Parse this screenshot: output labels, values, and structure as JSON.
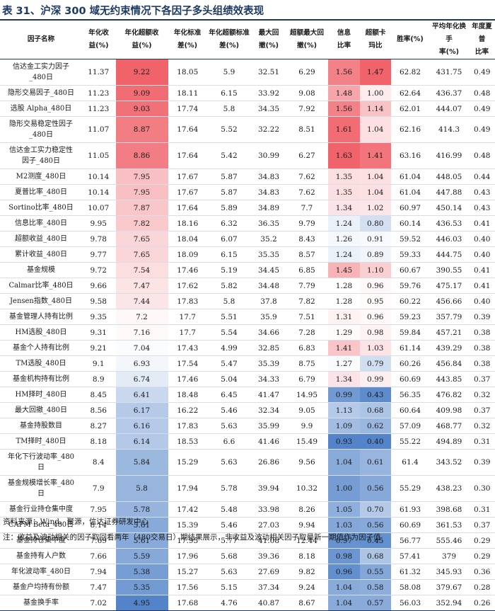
{
  "title": "表 31、沪深 300 域无约束情况下各因子多头组绩效表现",
  "colors": {
    "title": "#1e3a63",
    "high": "#ef5b63",
    "low": "#4a7ec6"
  },
  "headers": [
    [
      "因子名称"
    ],
    [
      "年化收",
      "益(%)"
    ],
    [
      "年化超额收",
      "益(%)"
    ],
    [
      "年化标准",
      "差(%)"
    ],
    [
      "年化超额标准",
      "差(%)"
    ],
    [
      "最大回",
      "撤(%)"
    ],
    [
      "超额最大回",
      "撤(%)"
    ],
    [
      "信息",
      "比率"
    ],
    [
      "超额卡",
      "玛比"
    ],
    [
      "胜率(%)"
    ],
    [
      "平均年化换手",
      "率(%)"
    ],
    [
      "年度夏普",
      "比率"
    ]
  ],
  "rows": [
    {
      "name": [
        "信达金工实力因子",
        "_480日"
      ],
      "v": [
        "11.37",
        "9.22",
        "18.05",
        "5.9",
        "32.51",
        "6.29",
        "1.56",
        "1.47",
        "62.82",
        "431.75",
        "0.49"
      ]
    },
    {
      "name": [
        "隐形交易因子_480日"
      ],
      "v": [
        "11.23",
        "9.09",
        "18.11",
        "6.15",
        "33.92",
        "9.08",
        "1.48",
        "1.00",
        "62.64",
        "436.37",
        "0.48"
      ]
    },
    {
      "name": [
        "选股 Alpha_480日"
      ],
      "v": [
        "11.23",
        "9.03",
        "17.74",
        "5.8",
        "34.35",
        "7.92",
        "1.56",
        "1.14",
        "62.01",
        "444.07",
        "0.49"
      ]
    },
    {
      "name": [
        "隐形交易稳定性因子",
        "_480日"
      ],
      "v": [
        "11.07",
        "8.87",
        "17.64",
        "5.52",
        "32.22",
        "8.51",
        "1.61",
        "1.04",
        "62.16",
        "414.3",
        "0.49"
      ]
    },
    {
      "name": [
        "信达金工实力稳定性",
        "因子_480日"
      ],
      "v": [
        "11.05",
        "8.86",
        "17.64",
        "5.42",
        "30.99",
        "6.27",
        "1.63",
        "1.41",
        "63.16",
        "416.99",
        "0.48"
      ]
    },
    {
      "name": [
        "M2测度_480日"
      ],
      "v": [
        "10.14",
        "7.95",
        "17.67",
        "5.87",
        "34.83",
        "7.62",
        "1.35",
        "1.04",
        "61.04",
        "448.05",
        "0.44"
      ]
    },
    {
      "name": [
        "夏普比率_480日"
      ],
      "v": [
        "10.14",
        "7.95",
        "17.67",
        "5.87",
        "34.83",
        "7.62",
        "1.35",
        "1.04",
        "61.04",
        "447.88",
        "0.43"
      ]
    },
    {
      "name": [
        "Sortino比率_480日"
      ],
      "v": [
        "10.07",
        "7.87",
        "17.64",
        "5.89",
        "34.89",
        "7.7",
        "1.34",
        "1.02",
        "60.97",
        "450.14",
        "0.43"
      ]
    },
    {
      "name": [
        "信息比率_480日"
      ],
      "v": [
        "9.95",
        "7.82",
        "18.16",
        "6.32",
        "36.35",
        "9.79",
        "1.24",
        "0.80",
        "60.14",
        "436.53",
        "0.41"
      ]
    },
    {
      "name": [
        "超额收益_480日"
      ],
      "v": [
        "9.78",
        "7.65",
        "18.04",
        "6.07",
        "35.2",
        "8.43",
        "1.26",
        "0.91",
        "59.52",
        "446.03",
        "0.40"
      ]
    },
    {
      "name": [
        "累计收益_480日"
      ],
      "v": [
        "9.77",
        "7.65",
        "18.09",
        "6.15",
        "35.35",
        "8.57",
        "1.24",
        "0.89",
        "59.33",
        "444.75",
        "0.40"
      ]
    },
    {
      "name": [
        "基金规模"
      ],
      "v": [
        "9.72",
        "7.54",
        "17.46",
        "5.19",
        "34.45",
        "6.85",
        "1.45",
        "1.10",
        "60.67",
        "390.55",
        "0.41"
      ]
    },
    {
      "name": [
        "Calmar比率_480日"
      ],
      "v": [
        "9.66",
        "7.47",
        "17.62",
        "5.82",
        "34.48",
        "7.79",
        "1.28",
        "0.96",
        "59.76",
        "475.17",
        "0.41"
      ]
    },
    {
      "name": [
        "Jensen指数_480日"
      ],
      "v": [
        "9.58",
        "7.44",
        "17.83",
        "5.8",
        "37.8",
        "7.82",
        "1.28",
        "0.95",
        "60.22",
        "456.66",
        "0.40"
      ]
    },
    {
      "name": [
        "基金管理人持有比例"
      ],
      "v": [
        "9.35",
        "7.2",
        "17.7",
        "5.51",
        "35.9",
        "7.51",
        "1.31",
        "0.96",
        "59.23",
        "357.79",
        "0.39"
      ]
    },
    {
      "name": [
        "HM选股_480日"
      ],
      "v": [
        "9.31",
        "7.16",
        "17.7",
        "5.54",
        "34.66",
        "7.28",
        "1.29",
        "0.98",
        "59.84",
        "457.21",
        "0.38"
      ]
    },
    {
      "name": [
        "基金个人持有比例"
      ],
      "v": [
        "9.21",
        "7.04",
        "17.43",
        "4.99",
        "32.85",
        "6.83",
        "1.41",
        "1.03",
        "61.14",
        "439.29",
        "0.38"
      ]
    },
    {
      "name": [
        "TM选股_480日"
      ],
      "v": [
        "9.1",
        "6.93",
        "17.54",
        "5.47",
        "35.39",
        "8.75",
        "1.27",
        "0.79",
        "60.26",
        "456.84",
        "0.38"
      ]
    },
    {
      "name": [
        "基金机构持有比例"
      ],
      "v": [
        "8.9",
        "6.74",
        "17.46",
        "5.04",
        "34.33",
        "6.79",
        "1.34",
        "0.99",
        "60.69",
        "443.85",
        "0.37"
      ]
    },
    {
      "name": [
        "HM择时_480日"
      ],
      "v": [
        "8.45",
        "6.41",
        "18.48",
        "6.45",
        "41.47",
        "14.95",
        "0.99",
        "0.43",
        "56.35",
        "476.82",
        "0.32"
      ]
    },
    {
      "name": [
        "最大回撤_480日"
      ],
      "v": [
        "8.56",
        "6.17",
        "16.22",
        "5.46",
        "32.34",
        "9.05",
        "1.13",
        "0.68",
        "60.64",
        "409.98",
        "0.37"
      ]
    },
    {
      "name": [
        "基金持股数目"
      ],
      "v": [
        "8.27",
        "6.16",
        "17.83",
        "5.63",
        "35.99",
        "9.9",
        "1.09",
        "0.62",
        "57.09",
        "468.77",
        "0.32"
      ]
    },
    {
      "name": [
        "TM择时_480日"
      ],
      "v": [
        "8.18",
        "6.14",
        "18.53",
        "6.6",
        "41.46",
        "15.49",
        "0.93",
        "0.40",
        "55.22",
        "494.89",
        "0.31"
      ]
    },
    {
      "name": [
        "年化下行波动率_480",
        "日"
      ],
      "v": [
        "8.4",
        "5.84",
        "15.29",
        "5.63",
        "26.86",
        "9.56",
        "1.04",
        "0.61",
        "61.4",
        "343.52",
        "0.39"
      ]
    },
    {
      "name": [
        "基金规模增长率_480",
        "日"
      ],
      "v": [
        "7.9",
        "5.8",
        "17.94",
        "5.78",
        "39.94",
        "10.32",
        "1.00",
        "0.56",
        "55.29",
        "438.23",
        "0.30"
      ]
    },
    {
      "name": [
        "基金行业持仓集中度"
      ],
      "v": [
        "7.95",
        "5.78",
        "17.42",
        "5.48",
        "33.98",
        "8.26",
        "1.05",
        "0.70",
        "61.93",
        "398.68",
        "0.31"
      ]
    },
    {
      "name": [
        "CAPM Beta_480日"
      ],
      "v": [
        "8.14",
        "5.61",
        "15.39",
        "5.46",
        "27.03",
        "9.94",
        "1.03",
        "0.56",
        "60.69",
        "361.53",
        "0.37"
      ]
    },
    {
      "name": [
        "基金持仓集中度"
      ],
      "v": [
        "7.69",
        "5.61",
        "17.95",
        "5.77",
        "41.08",
        "12.44",
        "0.97",
        "0.45",
        "56.77",
        "555.46",
        "0.29"
      ]
    },
    {
      "name": [
        "基金持有人户数"
      ],
      "v": [
        "7.66",
        "5.59",
        "17.96",
        "5.68",
        "39.36",
        "8.18",
        "0.98",
        "0.68",
        "57.41",
        "379",
        "0.29"
      ]
    },
    {
      "name": [
        "年化波动率_480日"
      ],
      "v": [
        "7.94",
        "5.38",
        "15.27",
        "5.63",
        "27.69",
        "9.82",
        "0.96",
        "0.55",
        "61.32",
        "345.93",
        "0.36"
      ]
    },
    {
      "name": [
        "基金户均持有份额"
      ],
      "v": [
        "7.47",
        "5.35",
        "17.56",
        "5.15",
        "37.34",
        "9.24",
        "1.04",
        "0.58",
        "58.08",
        "379.67",
        "0.28"
      ]
    },
    {
      "name": [
        "基金换手率"
      ],
      "v": [
        "7.02",
        "4.95",
        "17.68",
        "4.76",
        "40.87",
        "8.67",
        "1.04",
        "0.57",
        "56.03",
        "352.94",
        "0.26"
      ]
    }
  ],
  "footer": {
    "source": "资料来源：Wind、聚源，信达证券研发中心",
    "note": "注：收益及波动相关的因子取回看两年（480交易日）期结果展示，非收益及波动相关因子取最新一期值作为因子值"
  }
}
